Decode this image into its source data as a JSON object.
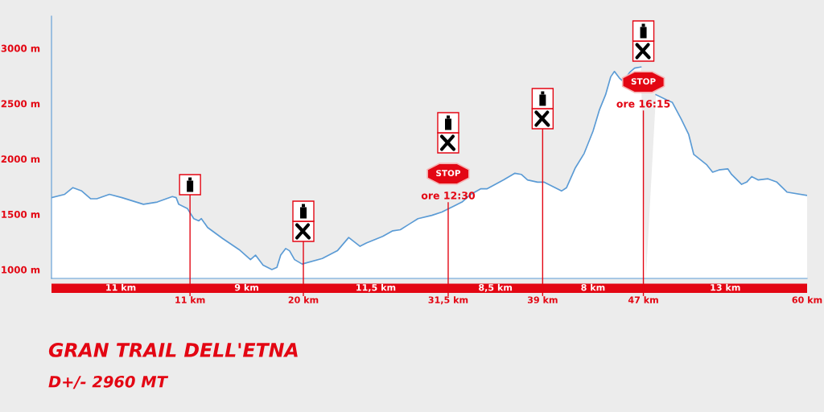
{
  "chart_data": {
    "type": "area",
    "title": "GRAN TRAIL DELL'ETNA",
    "subtitle": "D+/- 2960 MT",
    "x": [
      0,
      1.05,
      1.7,
      2.4,
      3.1,
      3.6,
      4.6,
      5.6,
      7.3,
      8.4,
      9.6,
      9.9,
      10.1,
      10.8,
      11.3,
      11.7,
      11.9,
      12.4,
      13.6,
      14.9,
      15.8,
      16.2,
      16.8,
      17.5,
      17.9,
      18.2,
      18.6,
      18.9,
      19.3,
      19.9,
      21.5,
      22.7,
      23.6,
      24.5,
      25.0,
      26.3,
      27.1,
      27.7,
      29.1,
      30.2,
      31.0,
      32.6,
      33.3,
      34.1,
      34.6,
      35.4,
      35.9,
      36.8,
      37.3,
      37.8,
      38.6,
      39.1,
      39.8,
      40.5,
      40.9,
      41.6,
      42.3,
      43.0,
      43.5,
      44.0,
      44.4,
      44.7,
      45.1,
      45.4,
      45.9,
      46.3,
      46.8,
      47.2,
      48.0,
      48.9,
      49.3,
      50.0,
      50.6,
      51.0,
      52.0,
      52.5,
      53.0,
      53.7,
      54.0,
      54.8,
      55.2,
      55.6,
      56.1,
      56.9,
      57.6,
      58.4,
      60
    ],
    "values": [
      1650,
      1680,
      1740,
      1710,
      1640,
      1640,
      1680,
      1650,
      1590,
      1610,
      1660,
      1650,
      1590,
      1550,
      1460,
      1440,
      1460,
      1380,
      1280,
      1180,
      1090,
      1130,
      1040,
      1000,
      1020,
      1130,
      1190,
      1170,
      1090,
      1050,
      1100,
      1170,
      1290,
      1210,
      1240,
      1300,
      1350,
      1360,
      1460,
      1490,
      1520,
      1610,
      1680,
      1730,
      1730,
      1780,
      1810,
      1870,
      1860,
      1810,
      1790,
      1790,
      1750,
      1710,
      1740,
      1920,
      2050,
      2250,
      2440,
      2580,
      2740,
      2790,
      2730,
      2700,
      2780,
      2820,
      2830,
      null,
      2580,
      2530,
      2510,
      2360,
      2220,
      2040,
      1950,
      1880,
      1900,
      1910,
      1860,
      1770,
      1790,
      1840,
      1810,
      1820,
      1790,
      1700,
      1670
    ],
    "color": "#5b9bd5",
    "xlim": [
      0,
      60
    ],
    "ylim": [
      920,
      3290
    ],
    "xticks": [
      {
        "value": 11,
        "label": "11 km"
      },
      {
        "value": 20,
        "label": "20 km"
      },
      {
        "value": 31.5,
        "label": "31,5 km"
      },
      {
        "value": 39,
        "label": "39 km"
      },
      {
        "value": 47,
        "label": "47 km"
      },
      {
        "value": 60,
        "label": "60 km"
      }
    ],
    "yticks": [
      {
        "value": 1000,
        "label": "1000 m"
      },
      {
        "value": 1500,
        "label": "1500 m"
      },
      {
        "value": 2000,
        "label": "2000 m"
      },
      {
        "value": 2500,
        "label": "2500 m"
      },
      {
        "value": 3000,
        "label": "3000 m"
      }
    ],
    "ref_lines": [
      {
        "axis": "x",
        "value": 11,
        "color": "#e30613"
      },
      {
        "axis": "x",
        "value": 20,
        "color": "#e30613"
      },
      {
        "axis": "x",
        "value": 31.5,
        "color": "#e30613"
      },
      {
        "axis": "x",
        "value": 39,
        "color": "#e30613"
      },
      {
        "axis": "x",
        "value": 47,
        "color": "#e30613"
      }
    ],
    "annotations": [
      "11 km",
      "9 km",
      "11,5 km",
      "8,5 km",
      "8 km",
      "13 km",
      "STOP",
      "ore 12:30",
      "STOP",
      "ore 16:15"
    ]
  }
}
